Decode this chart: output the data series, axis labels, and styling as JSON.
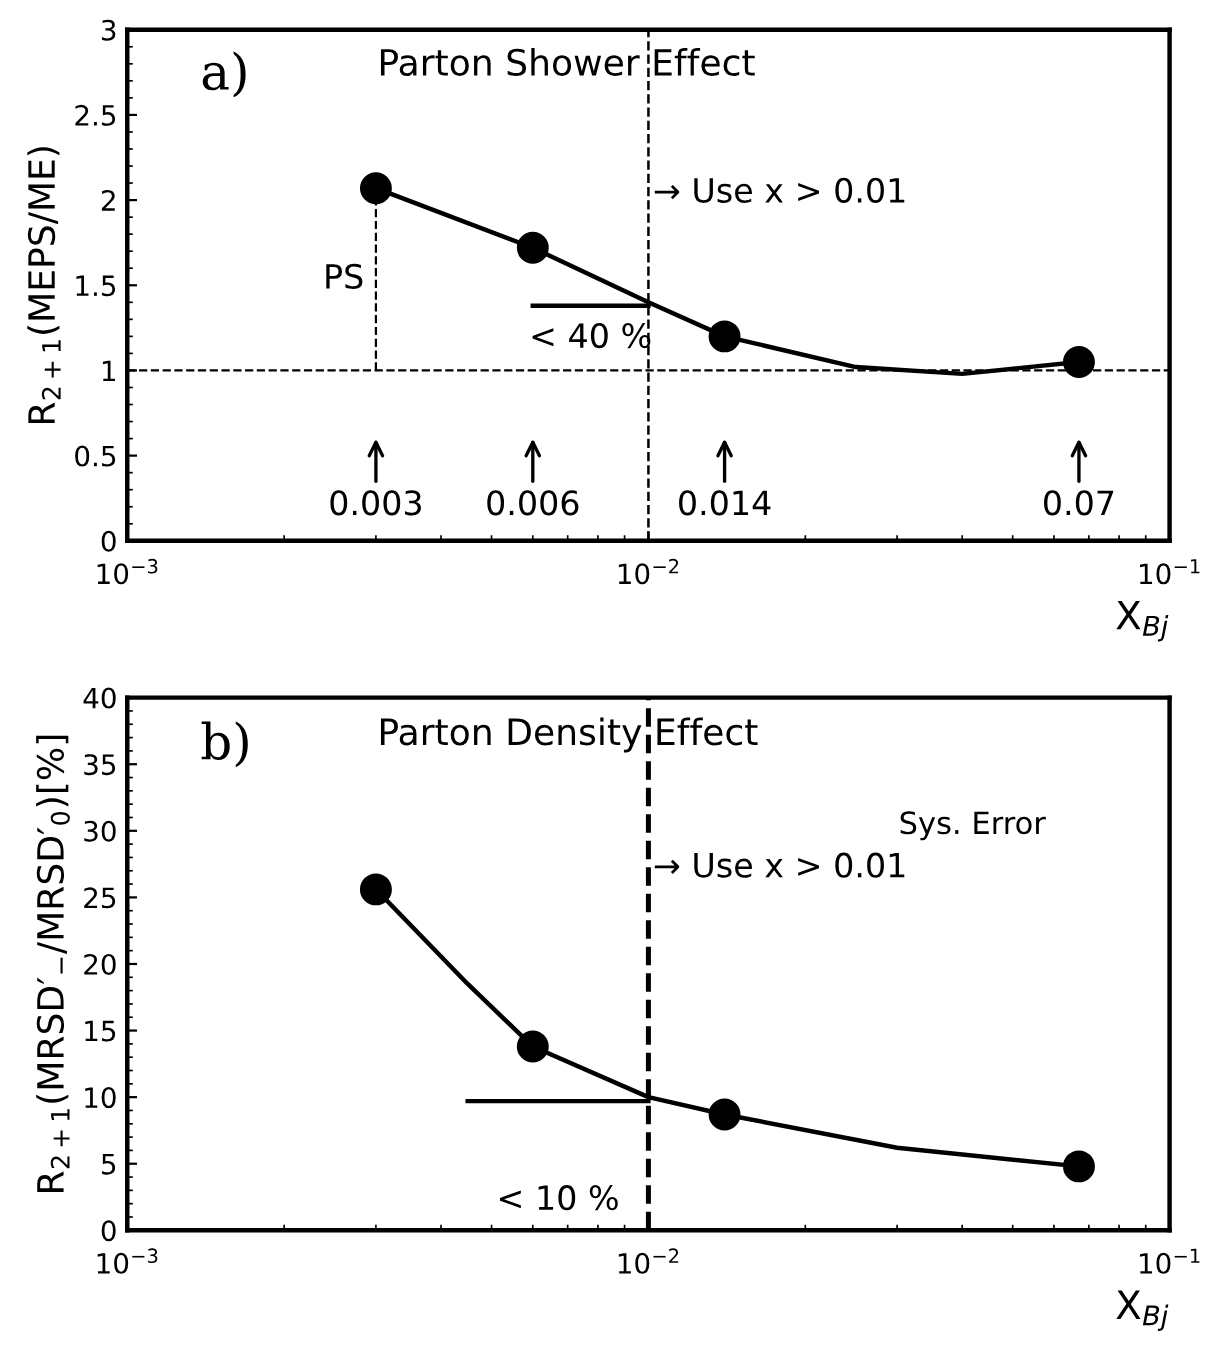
{
  "chart_data": [
    {
      "type": "scatter",
      "title": "Parton Shower Effect",
      "xlabel": "X$_{Bj}$",
      "ylabel": "R$_{2+1}$(MEPS/ME)",
      "log": "x",
      "grid": false,
      "legend": false,
      "marker": "circle",
      "xlim": [
        0.001,
        0.1
      ],
      "xticks": [
        {
          "value": 0.001,
          "label": "10$^{−3}$"
        },
        {
          "value": 0.01,
          "label": "10$^{−2}$"
        },
        {
          "value": 0.1,
          "label": "10$^{−1}$"
        }
      ],
      "ylim": [
        0,
        3
      ],
      "yticks": [
        0,
        0.5,
        1,
        1.5,
        2,
        2.5,
        3
      ],
      "series": [
        {
          "color": "#000000",
          "x": [
            0.003,
            0.006,
            0.014,
            0.067
          ],
          "values": [
            2.07,
            1.72,
            1.2,
            1.05
          ]
        },
        {
          "type": "line",
          "color": "#000000",
          "line_style": "solid",
          "marker": "none",
          "x": [
            0.003,
            0.006,
            0.01,
            0.014,
            0.025,
            0.04,
            0.067
          ],
          "values": [
            2.07,
            1.72,
            1.4,
            1.2,
            1.02,
            0.98,
            1.05
          ]
        },
        {
          "type": "line",
          "color": "#000000",
          "line_style": "dashed",
          "marker": "none",
          "x": [
            0.003,
            0.003
          ],
          "values": [
            1,
            2.07
          ]
        },
        {
          "type": "line",
          "color": "#000000",
          "line_style": "solid",
          "marker": "none",
          "x": [
            0.006,
            0.01
          ],
          "values": [
            1.38,
            1.38
          ]
        }
      ],
      "ref_lines": [
        {
          "axis": "y",
          "value": 1,
          "line_style": "dashed"
        },
        {
          "axis": "x",
          "value": 0.01,
          "line_style": "dashed",
          "label": "→ Use x > 0.01"
        }
      ],
      "annotations": [
        "a)",
        "PS",
        "< 40 %",
        "0.003",
        "0.006",
        "0.014",
        "0.07"
      ]
    },
    {
      "type": "scatter",
      "title": "Parton Density Effect",
      "xlabel": "X$_{Bj}$",
      "ylabel": "R$_{2+1}$(MRSD′$_{−}$/MRSD′$_{0}$)[%]",
      "log": "x",
      "grid": false,
      "legend": false,
      "marker": "circle",
      "xlim": [
        0.001,
        0.1
      ],
      "xticks": [
        {
          "value": 0.001,
          "label": "10$^{−3}$"
        },
        {
          "value": 0.01,
          "label": "10$^{−2}$"
        },
        {
          "value": 0.1,
          "label": "10$^{−1}$"
        }
      ],
      "ylim": [
        0,
        40
      ],
      "yticks": [
        0,
        5,
        10,
        15,
        20,
        25,
        30,
        35,
        40
      ],
      "series": [
        {
          "color": "#000000",
          "x": [
            0.003,
            0.006,
            0.014,
            0.067
          ],
          "values": [
            25.6,
            13.8,
            8.7,
            4.8
          ]
        },
        {
          "type": "line",
          "color": "#000000",
          "line_style": "solid",
          "marker": "none",
          "x": [
            0.003,
            0.0045,
            0.006,
            0.01,
            0.014,
            0.03,
            0.067
          ],
          "values": [
            25.6,
            18.5,
            13.8,
            10.0,
            8.7,
            6.2,
            4.8
          ]
        },
        {
          "type": "line",
          "color": "#000000",
          "line_style": "solid",
          "marker": "none",
          "x": [
            0.0045,
            0.01
          ],
          "values": [
            9.7,
            9.7
          ]
        }
      ],
      "ref_lines": [
        {
          "axis": "x",
          "value": 0.01,
          "line_style": "dashed",
          "label": "→ Use x > 0.01"
        }
      ],
      "annotations": [
        "b)",
        "Sys. Error",
        "< 10 %"
      ]
    }
  ]
}
